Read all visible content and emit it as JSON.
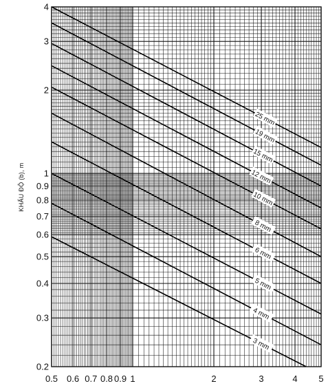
{
  "chart_data": {
    "type": "line",
    "title": "",
    "xlabel": "",
    "ylabel": "KHẨU ĐỘ (b), m",
    "xscale": "log",
    "yscale": "log",
    "xlim": [
      0.5,
      5
    ],
    "ylim": [
      0.2,
      4
    ],
    "grid": true,
    "x_ticks": [
      {
        "value": 0.5,
        "label": "0.5"
      },
      {
        "value": 0.6,
        "label": "0.6"
      },
      {
        "value": 0.7,
        "label": "0.7"
      },
      {
        "value": 0.8,
        "label": "0.8"
      },
      {
        "value": 0.9,
        "label": "0.9"
      },
      {
        "value": 1,
        "label": "1"
      },
      {
        "value": 2,
        "label": "2"
      },
      {
        "value": 3,
        "label": "3"
      },
      {
        "value": 4,
        "label": "4"
      },
      {
        "value": 5,
        "label": "5"
      }
    ],
    "y_ticks": [
      {
        "value": 0.2,
        "label": "0.2"
      },
      {
        "value": 0.3,
        "label": "0.3"
      },
      {
        "value": 0.4,
        "label": "0.4"
      },
      {
        "value": 0.5,
        "label": "0.5"
      },
      {
        "value": 0.6,
        "label": "0.6"
      },
      {
        "value": 0.7,
        "label": "0.7"
      },
      {
        "value": 0.8,
        "label": "0.8"
      },
      {
        "value": 0.9,
        "label": "0.9"
      },
      {
        "value": 1,
        "label": "1"
      },
      {
        "value": 2,
        "label": "2"
      },
      {
        "value": 3,
        "label": "3"
      },
      {
        "value": 4,
        "label": "4"
      }
    ],
    "series": [
      {
        "name": "25 mm",
        "points": [
          [
            0.5,
            4.0
          ],
          [
            5,
            1.24
          ]
        ],
        "label_at": 3.1
      },
      {
        "name": "19 mm",
        "points": [
          [
            0.5,
            3.5
          ],
          [
            5,
            1.07
          ]
        ],
        "label_at": 3.1
      },
      {
        "name": "15 mm",
        "points": [
          [
            0.5,
            2.95
          ],
          [
            5,
            0.9
          ]
        ],
        "label_at": 3.05
      },
      {
        "name": "12 mm",
        "points": [
          [
            0.5,
            2.45
          ],
          [
            5,
            0.75
          ]
        ],
        "label_at": 3.0
      },
      {
        "name": "10 mm",
        "points": [
          [
            0.5,
            2.05
          ],
          [
            5,
            0.63
          ]
        ],
        "label_at": 3.05
      },
      {
        "name": "8 mm",
        "points": [
          [
            0.5,
            1.65
          ],
          [
            5,
            0.5
          ]
        ],
        "label_at": 3.05
      },
      {
        "name": "6 mm",
        "points": [
          [
            0.5,
            1.3
          ],
          [
            5,
            0.4
          ]
        ],
        "label_at": 3.05
      },
      {
        "name": "5 mm",
        "points": [
          [
            0.5,
            1.0
          ],
          [
            5,
            0.31
          ]
        ],
        "label_at": 3.05
      },
      {
        "name": "4 mm",
        "points": [
          [
            0.5,
            0.78
          ],
          [
            5,
            0.24
          ]
        ],
        "label_at": 3.0
      },
      {
        "name": "3 mm",
        "points": [
          [
            0.5,
            0.59
          ],
          [
            4.4,
            0.2
          ]
        ],
        "label_at": 3.0
      }
    ]
  }
}
